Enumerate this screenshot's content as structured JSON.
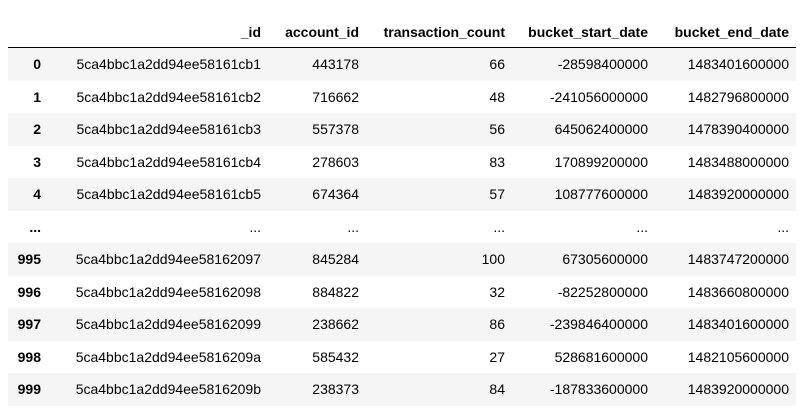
{
  "table": {
    "columns": [
      "",
      "_id",
      "account_id",
      "transaction_count",
      "bucket_start_date",
      "bucket_end_date"
    ],
    "rows": [
      [
        "0",
        "5ca4bbc1a2dd94ee58161cb1",
        "443178",
        "66",
        "-28598400000",
        "1483401600000"
      ],
      [
        "1",
        "5ca4bbc1a2dd94ee58161cb2",
        "716662",
        "48",
        "-241056000000",
        "1482796800000"
      ],
      [
        "2",
        "5ca4bbc1a2dd94ee58161cb3",
        "557378",
        "56",
        "645062400000",
        "1478390400000"
      ],
      [
        "3",
        "5ca4bbc1a2dd94ee58161cb4",
        "278603",
        "83",
        "170899200000",
        "1483488000000"
      ],
      [
        "4",
        "5ca4bbc1a2dd94ee58161cb5",
        "674364",
        "57",
        "108777600000",
        "1483920000000"
      ],
      [
        "...",
        "...",
        "...",
        "...",
        "...",
        "..."
      ],
      [
        "995",
        "5ca4bbc1a2dd94ee58162097",
        "845284",
        "100",
        "67305600000",
        "1483747200000"
      ],
      [
        "996",
        "5ca4bbc1a2dd94ee58162098",
        "884822",
        "32",
        "-82252800000",
        "1483660800000"
      ],
      [
        "997",
        "5ca4bbc1a2dd94ee58162099",
        "238662",
        "86",
        "-239846400000",
        "1483401600000"
      ],
      [
        "998",
        "5ca4bbc1a2dd94ee5816209a",
        "585432",
        "27",
        "528681600000",
        "1482105600000"
      ],
      [
        "999",
        "5ca4bbc1a2dd94ee5816209b",
        "238373",
        "84",
        "-187833600000",
        "1483920000000"
      ]
    ]
  }
}
